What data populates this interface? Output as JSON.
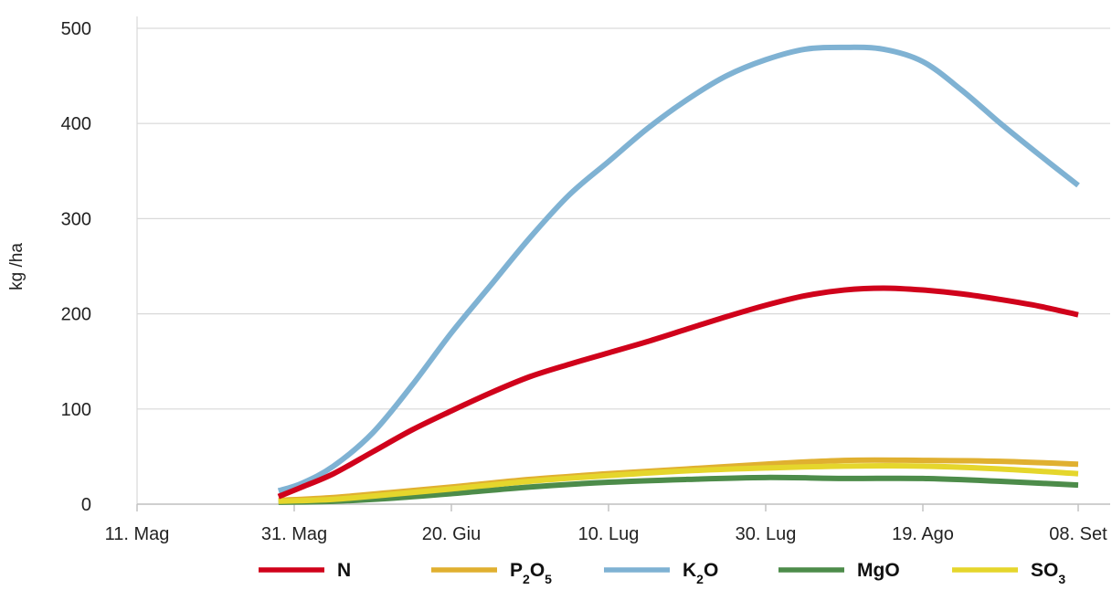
{
  "chart_data": {
    "type": "line",
    "title": "",
    "xlabel": "",
    "ylabel": "kg /ha",
    "ylim": [
      0,
      500
    ],
    "yticks": [
      0,
      100,
      200,
      300,
      400,
      500
    ],
    "xticks": [
      "2023-05-11",
      "2023-05-31",
      "2023-06-20",
      "2023-07-10",
      "2023-07-30",
      "2023-08-19",
      "2023-09-08"
    ],
    "xtick_labels": [
      "11. Mag",
      "31. Mag",
      "20. Giu",
      "10. Lug",
      "30. Lug",
      "19. Ago",
      "08. Set"
    ],
    "grid": "horizontal",
    "legend_position": "bottom",
    "series": [
      {
        "name": "N",
        "label": {
          "text": "N",
          "sub": "",
          "rest": "",
          "sub2": ""
        },
        "color": "#d0021b",
        "points": [
          [
            "2023-05-29",
            8
          ],
          [
            "2023-06-01",
            18
          ],
          [
            "2023-06-05",
            32
          ],
          [
            "2023-06-10",
            55
          ],
          [
            "2023-06-15",
            78
          ],
          [
            "2023-06-20",
            98
          ],
          [
            "2023-06-25",
            117
          ],
          [
            "2023-06-30",
            134
          ],
          [
            "2023-07-05",
            147
          ],
          [
            "2023-07-10",
            159
          ],
          [
            "2023-07-15",
            171
          ],
          [
            "2023-07-20",
            184
          ],
          [
            "2023-07-25",
            197
          ],
          [
            "2023-07-30",
            209
          ],
          [
            "2023-08-04",
            219
          ],
          [
            "2023-08-09",
            225
          ],
          [
            "2023-08-14",
            227
          ],
          [
            "2023-08-19",
            225
          ],
          [
            "2023-08-24",
            221
          ],
          [
            "2023-08-29",
            215
          ],
          [
            "2023-09-03",
            208
          ],
          [
            "2023-09-08",
            199
          ]
        ]
      },
      {
        "name": "P2O5",
        "label": {
          "text": "P",
          "sub": "2",
          "rest": "O",
          "sub2": "5"
        },
        "color": "#e0b030",
        "points": [
          [
            "2023-05-29",
            4
          ],
          [
            "2023-06-05",
            7
          ],
          [
            "2023-06-12",
            12
          ],
          [
            "2023-06-20",
            18
          ],
          [
            "2023-06-30",
            26
          ],
          [
            "2023-07-10",
            32
          ],
          [
            "2023-07-20",
            37
          ],
          [
            "2023-07-30",
            42
          ],
          [
            "2023-08-09",
            46
          ],
          [
            "2023-08-19",
            46
          ],
          [
            "2023-08-29",
            45
          ],
          [
            "2023-09-08",
            42
          ]
        ]
      },
      {
        "name": "K2O",
        "label": {
          "text": "K",
          "sub": "2",
          "rest": "O",
          "sub2": ""
        },
        "color": "#7fb2d3",
        "points": [
          [
            "2023-05-29",
            14
          ],
          [
            "2023-06-01",
            22
          ],
          [
            "2023-06-05",
            40
          ],
          [
            "2023-06-10",
            75
          ],
          [
            "2023-06-15",
            125
          ],
          [
            "2023-06-20",
            180
          ],
          [
            "2023-06-25",
            230
          ],
          [
            "2023-06-30",
            280
          ],
          [
            "2023-07-05",
            325
          ],
          [
            "2023-07-10",
            360
          ],
          [
            "2023-07-15",
            395
          ],
          [
            "2023-07-20",
            425
          ],
          [
            "2023-07-25",
            450
          ],
          [
            "2023-07-30",
            467
          ],
          [
            "2023-08-04",
            478
          ],
          [
            "2023-08-09",
            480
          ],
          [
            "2023-08-14",
            478
          ],
          [
            "2023-08-19",
            465
          ],
          [
            "2023-08-24",
            435
          ],
          [
            "2023-08-29",
            400
          ],
          [
            "2023-09-03",
            367
          ],
          [
            "2023-09-08",
            335
          ]
        ]
      },
      {
        "name": "MgO",
        "label": {
          "text": "MgO",
          "sub": "",
          "rest": "",
          "sub2": ""
        },
        "color": "#4d8c4a",
        "points": [
          [
            "2023-05-29",
            2
          ],
          [
            "2023-06-05",
            3
          ],
          [
            "2023-06-12",
            6
          ],
          [
            "2023-06-20",
            11
          ],
          [
            "2023-06-30",
            18
          ],
          [
            "2023-07-10",
            23
          ],
          [
            "2023-07-20",
            26
          ],
          [
            "2023-07-30",
            28
          ],
          [
            "2023-08-09",
            27
          ],
          [
            "2023-08-19",
            27
          ],
          [
            "2023-08-29",
            24
          ],
          [
            "2023-09-08",
            20
          ]
        ]
      },
      {
        "name": "SO3",
        "label": {
          "text": "SO",
          "sub": "3",
          "rest": "",
          "sub2": ""
        },
        "color": "#e5d62c",
        "points": [
          [
            "2023-05-29",
            3
          ],
          [
            "2023-06-05",
            5
          ],
          [
            "2023-06-12",
            10
          ],
          [
            "2023-06-20",
            16
          ],
          [
            "2023-06-30",
            24
          ],
          [
            "2023-07-10",
            30
          ],
          [
            "2023-07-20",
            35
          ],
          [
            "2023-07-30",
            38
          ],
          [
            "2023-08-09",
            40
          ],
          [
            "2023-08-19",
            40
          ],
          [
            "2023-08-29",
            37
          ],
          [
            "2023-09-08",
            32
          ]
        ]
      }
    ]
  }
}
